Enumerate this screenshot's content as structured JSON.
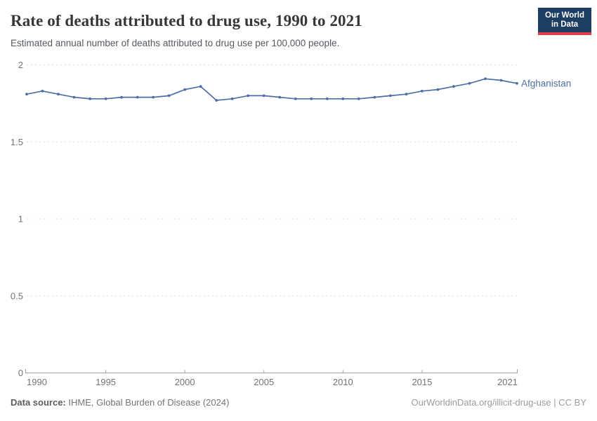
{
  "header": {
    "title": "Rate of deaths attributed to drug use, 1990 to 2021",
    "subtitle": "Estimated annual number of deaths attributed to drug use per 100,000 people.",
    "logo": {
      "line1": "Our World",
      "line2": "in Data",
      "bg": "#1d3d63",
      "accent": "#dc3e45"
    }
  },
  "chart_data": {
    "type": "line",
    "title": "Rate of deaths attributed to drug use, 1990 to 2021",
    "subtitle": "Estimated annual number of deaths attributed to drug use per 100,000 people.",
    "x": [
      1990,
      1991,
      1992,
      1993,
      1994,
      1995,
      1996,
      1997,
      1998,
      1999,
      2000,
      2001,
      2002,
      2003,
      2004,
      2005,
      2006,
      2007,
      2008,
      2009,
      2010,
      2011,
      2012,
      2013,
      2014,
      2015,
      2016,
      2017,
      2018,
      2019,
      2020,
      2021
    ],
    "series": [
      {
        "name": "Afghanistan",
        "color": "#4d6fa5",
        "values": [
          1.81,
          1.83,
          1.81,
          1.79,
          1.78,
          1.78,
          1.79,
          1.79,
          1.79,
          1.8,
          1.84,
          1.86,
          1.77,
          1.78,
          1.8,
          1.8,
          1.79,
          1.78,
          1.78,
          1.78,
          1.78,
          1.78,
          1.79,
          1.8,
          1.81,
          1.83,
          1.84,
          1.86,
          1.88,
          1.91,
          1.9,
          1.88
        ]
      }
    ],
    "xlabel": "",
    "ylabel": "",
    "xlim": [
      1990,
      2021
    ],
    "ylim": [
      0,
      2
    ],
    "x_tick_labels": [
      "1990",
      "1995",
      "2000",
      "2005",
      "2010",
      "2015",
      "2021"
    ],
    "x_tick_years": [
      1990,
      1995,
      2000,
      2005,
      2010,
      2015,
      2021
    ],
    "y_ticks": [
      0,
      0.5,
      1,
      1.5,
      2
    ],
    "y_tick_labels": [
      "0",
      "0.5",
      "1",
      "1.5",
      "2"
    ],
    "grid": "horizontal-dashed",
    "legend_position": "end-of-line-label",
    "colors": {
      "grid": "#dcdcdc",
      "axis": "#a3a3a3",
      "tick_text": "#737373"
    }
  },
  "footer": {
    "source_label": "Data source:",
    "source_value": " IHME, Global Burden of Disease (2024)",
    "link": "OurWorldinData.org/illicit-drug-use | CC BY"
  }
}
